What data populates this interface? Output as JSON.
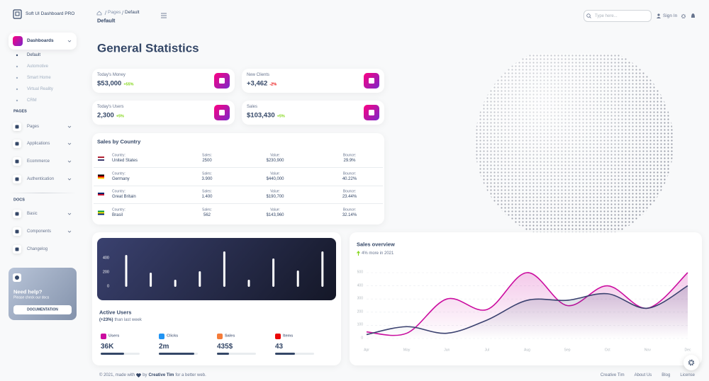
{
  "sidebar": {
    "brand": "Soft UI Dashboard PRO",
    "dashboards": {
      "label": "Dashboards",
      "items": [
        "Default",
        "Automotive",
        "Smart Home",
        "Virtual Reality",
        "CRM"
      ]
    },
    "sections": [
      {
        "title": "PAGES",
        "items": [
          "Pages",
          "Applications",
          "Ecommerce",
          "Authentication"
        ]
      },
      {
        "title": "DOCS",
        "items": [
          "Basic",
          "Components",
          "Changelog"
        ]
      }
    ],
    "help": {
      "title": "Need help?",
      "text": "Please check our docs",
      "button": "DOCUMENTATION"
    }
  },
  "topbar": {
    "breadcrumb": [
      "Pages",
      "Default"
    ],
    "title": "Default",
    "search_placeholder": "Type here...",
    "sign_in": "Sign In"
  },
  "heading": "General Statistics",
  "stats": [
    {
      "label": "Today's Money",
      "value": "$53,000",
      "change": "+55%"
    },
    {
      "label": "New Clients",
      "value": "+3,462",
      "change": "-2%"
    },
    {
      "label": "Today's Users",
      "value": "2,300",
      "change": "+5%"
    },
    {
      "label": "Sales",
      "value": "$103,430",
      "change": "+5%"
    }
  ],
  "sales_by_country": {
    "title": "Sales by Country",
    "headers": [
      "Country:",
      "Sales:",
      "Value:",
      "Bounce:"
    ],
    "rows": [
      [
        "United States",
        "2500",
        "$230,900",
        "29.9%"
      ],
      [
        "Germany",
        "3.900",
        "$440,000",
        "40.22%"
      ],
      [
        "Great Britain",
        "1.400",
        "$190,700",
        "23.44%"
      ],
      [
        "Brasil",
        "562",
        "$143,960",
        "32.14%"
      ]
    ]
  },
  "active_users": {
    "chart": {
      "type": "bar",
      "values": [
        450,
        200,
        100,
        220,
        500,
        100,
        400,
        230,
        500
      ],
      "color": "#ffffff",
      "ylim": [
        0,
        500
      ],
      "yticks": [
        0,
        200,
        400
      ]
    },
    "title": "Active Users",
    "subtitle_highlight": "(+23%)",
    "subtitle": "than last week",
    "metrics": [
      {
        "label": "Users",
        "value": "36K",
        "progress": 60,
        "color": "#cb0c9f"
      },
      {
        "label": "Clicks",
        "value": "2m",
        "progress": 90,
        "color": "#2194f3"
      },
      {
        "label": "Sales",
        "value": "435$",
        "progress": 30,
        "color": "#f57c39"
      },
      {
        "label": "Items",
        "value": "43",
        "progress": 50,
        "color": "#ea0606"
      }
    ]
  },
  "sales_overview": {
    "title": "Sales overview",
    "subtitle": "4% more in 2021",
    "chart": {
      "type": "line",
      "categories": [
        "Apr",
        "May",
        "Jun",
        "Jul",
        "Aug",
        "Sep",
        "Oct",
        "Nov",
        "Dec"
      ],
      "series": [
        {
          "color": "#cb0c9f",
          "values": [
            50,
            40,
            300,
            220,
            500,
            250,
            400,
            230,
            500
          ]
        },
        {
          "color": "#3a416f",
          "values": [
            30,
            90,
            40,
            140,
            290,
            290,
            340,
            230,
            400
          ]
        }
      ],
      "ylim": [
        0,
        500
      ],
      "yticks": [
        0,
        100,
        200,
        300,
        400,
        500
      ],
      "grid": true
    }
  },
  "footer": {
    "copyright": "© 2021, made with",
    "by": "by",
    "author": "Creative Tim",
    "suffix": "for a better web.",
    "links": [
      "Creative Tim",
      "About Us",
      "Blog",
      "License"
    ]
  }
}
